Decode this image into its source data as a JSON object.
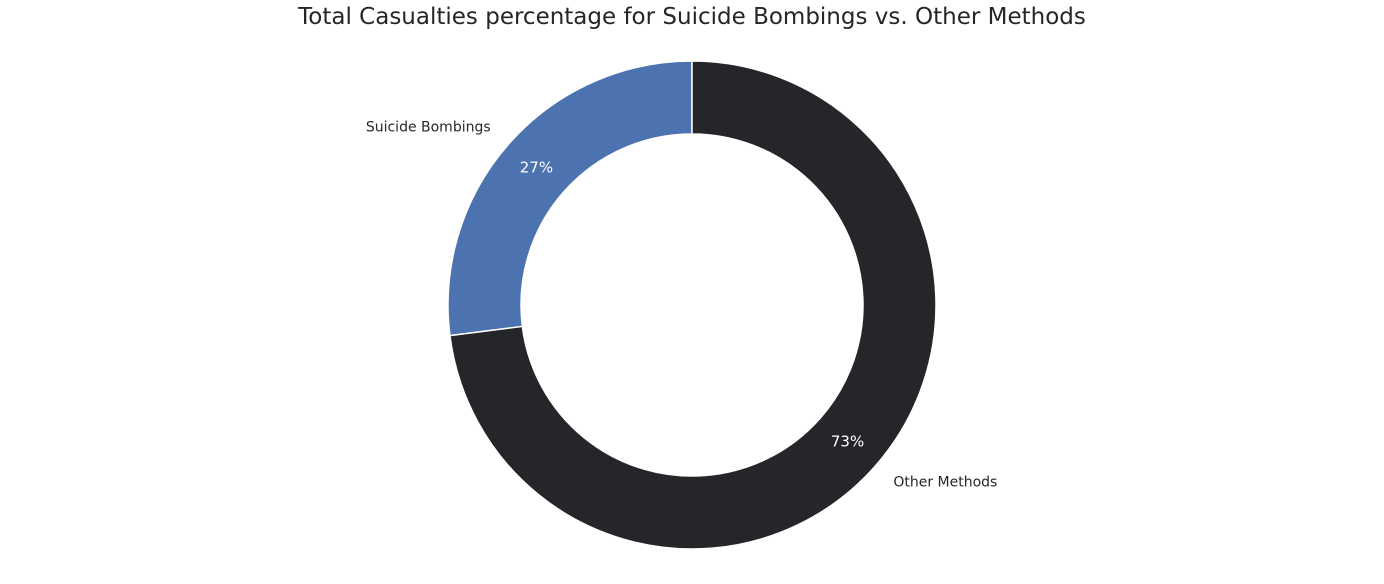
{
  "chart_data": {
    "type": "pie",
    "donut": true,
    "title": "Total Casualties percentage for Suicide Bombings vs. Other Methods",
    "categories": [
      "Suicide Bombings",
      "Other Methods"
    ],
    "values": [
      27,
      73
    ],
    "percent_labels": [
      "27%",
      "73%"
    ],
    "colors": [
      "#4c72b0",
      "#25262a"
    ],
    "start_angle_deg": 90,
    "direction": "counterclockwise",
    "legend": "none"
  }
}
